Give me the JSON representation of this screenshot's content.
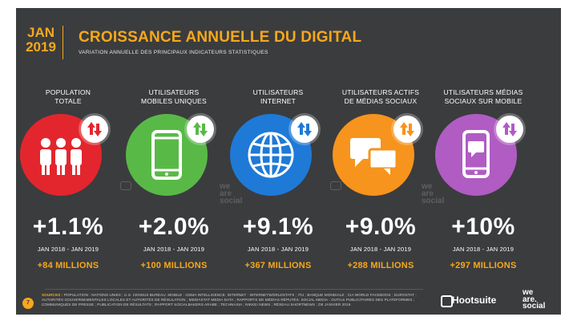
{
  "header": {
    "month": "JAN",
    "year": "2019",
    "title": "CROISSANCE ANNUELLE DU DIGITAL",
    "subtitle": "VARIATION ANNUELLE DES PRINCIPAUX INDICATEURS STATISTIQUES"
  },
  "columns": [
    {
      "label_line1": "POPULATION",
      "label_line2": "TOTALE",
      "percent": "+1.1%",
      "period": "JAN 2018 - JAN 2019",
      "absolute": "+84 MILLIONS",
      "color": "#e3262d",
      "icon": "people-icon"
    },
    {
      "label_line1": "UTILISATEURS",
      "label_line2": "MOBILES UNIQUES",
      "percent": "+2.0%",
      "period": "JAN 2018 - JAN 2019",
      "absolute": "+100 MILLIONS",
      "color": "#59b947",
      "icon": "smartphone-icon"
    },
    {
      "label_line1": "UTILISATEURS",
      "label_line2": "INTERNET",
      "percent": "+9.1%",
      "period": "JAN 2018 - JAN 2019",
      "absolute": "+367 MILLIONS",
      "color": "#1e7ad6",
      "icon": "globe-icon"
    },
    {
      "label_line1": "UTILISATEURS ACTIFS",
      "label_line2": "DE MÉDIAS SOCIAUX",
      "percent": "+9.0%",
      "period": "JAN 2018 - JAN 2019",
      "absolute": "+288 MILLIONS",
      "color": "#f7941d",
      "icon": "chat-bubbles-icon"
    },
    {
      "label_line1": "UTILISATEURS MÉDIAS",
      "label_line2": "SOCIAUX SUR MOBILE",
      "percent": "+10%",
      "period": "JAN 2018 - JAN 2019",
      "absolute": "+297 MILLIONS",
      "color": "#b05cc3",
      "icon": "mobile-chat-icon"
    }
  ],
  "footer": {
    "page_number": "7",
    "sources_label": "SOURCES :",
    "sources_text": "POPULATION : NATIONS UNIES ; U.S. CENSUS BUREAU. MOBILE : GSMA INTELLIGENCE. INTERNET : INTERNETWORLDSTATS ; ITU ; BANQUE MONDIALE ; CIA WORLD FACEBOOK ; EUROSTAT ; AUTORITÉS GOUVERNEMENTALES LOCALES ET AUTORITÉS DE RÉGULATION ; MEDIASTAT MEDIA DATA ; RAPPORTS DE MÉDIAS RÉPUTÉS. SOCIAL MEDIA : OUTILS PUBLICITAIRES DES PLATEFORMES ; COMMUNIQUÉS DE PRESSE ; PUBLICATION DE RÉSULTATS ; RAPPORT SOCIALBAKERS ARABE ; TECHNASIA ; NIKKEI NEWS ; RÉSEAU SHORTNEWS ; DE JANVIER 2019.",
    "brand": "Hootsuite",
    "we": "we",
    "are": "are.",
    "social": "social"
  },
  "watermark": {
    "we": "we",
    "are": "are",
    "social": "social"
  }
}
